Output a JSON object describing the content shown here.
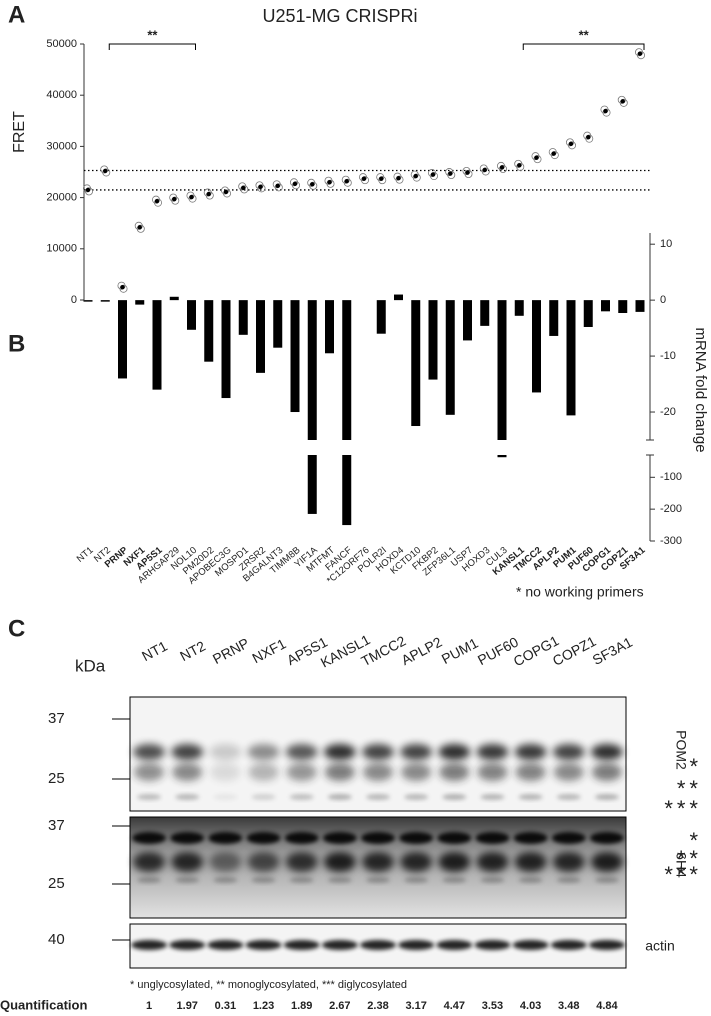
{
  "panel_labels": [
    "A",
    "B",
    "C"
  ],
  "chart_data": [
    {
      "type": "dot",
      "title": "U251-MG CRISPRi",
      "ylabel": "FRET",
      "categories": [
        "NT1",
        "NT2",
        "PRNP",
        "NXF1",
        "AP5S1",
        "ARHGAP29",
        "NOL10",
        "PM20D2",
        "APOBEC3G",
        "MOSPD1",
        "ZRSR2",
        "B4GALNT3",
        "TIMM8B",
        "YIF1A",
        "MTFMT",
        "FANCF",
        "*C12ORF76",
        "POLR2I",
        "HOXD4",
        "KCTD10",
        "FKBP2",
        "ZFP36L1",
        "USP7",
        "HOXD3",
        "CUL3",
        "KANSL1",
        "TMCC2",
        "APLP2",
        "PUM1",
        "PUF60",
        "COPG1",
        "COPZ1",
        "SF3A1"
      ],
      "bold": [
        false,
        false,
        true,
        true,
        true,
        false,
        false,
        false,
        false,
        false,
        false,
        false,
        false,
        false,
        false,
        false,
        false,
        false,
        false,
        false,
        false,
        false,
        false,
        false,
        false,
        true,
        true,
        true,
        true,
        true,
        true,
        true,
        true
      ],
      "values": [
        21500,
        25200,
        2500,
        14200,
        19300,
        19700,
        20100,
        20700,
        21100,
        21900,
        22100,
        22300,
        22700,
        22600,
        23000,
        23200,
        23700,
        23700,
        23800,
        24200,
        24500,
        24700,
        24900,
        25400,
        25900,
        26300,
        27800,
        28600,
        30500,
        31800,
        36900,
        38800,
        48100
      ],
      "color": "#000000",
      "ylim": [
        0,
        50000
      ],
      "yticks": [
        0,
        10000,
        20000,
        30000,
        40000,
        50000
      ],
      "reference_lines": [
        21500,
        25300
      ],
      "annotations": [
        {
          "text": "**",
          "from": "NT2",
          "to": "NOL10"
        },
        {
          "text": "**",
          "from": "KANSL1",
          "to": "SF3A1"
        }
      ]
    },
    {
      "type": "bar",
      "ylabel": "mRNA fold change",
      "axis": "y2",
      "values": [
        0,
        0,
        -14,
        -0.8,
        -16,
        0.6,
        -5.3,
        -11,
        -17.5,
        -6.2,
        -13,
        -8.5,
        -20,
        -215,
        -9.5,
        -250,
        null,
        -6,
        1,
        -22.5,
        -14.2,
        -20.5,
        -7.2,
        -4.6,
        -37,
        -2.8,
        -16.5,
        -6.4,
        -20.6,
        -4.8,
        -2,
        -2.3,
        -2.1
      ],
      "color": "#000000",
      "ylim": [
        -25,
        12
      ],
      "yticks": [
        -20,
        -10,
        0,
        10
      ],
      "ylim_lower": [
        -300,
        -30
      ],
      "yticks_lower": [
        -300,
        -200,
        -100
      ],
      "note": "*  no working primers"
    }
  ],
  "blot": {
    "lanes": [
      "NT1",
      "NT2",
      "PRNP",
      "NXF1",
      "AP5S1",
      "KANSL1",
      "TMCC2",
      "APLP2",
      "PUM1",
      "PUF60",
      "COPG1",
      "COPZ1",
      "SF3A1"
    ],
    "unit": "kDa",
    "panels": [
      {
        "label": "POM2",
        "markers": [
          37,
          25
        ],
        "marks": [
          "*",
          "**",
          "***"
        ]
      },
      {
        "label": "6H4",
        "markers": [
          37,
          25
        ],
        "marks": [
          "*",
          "**",
          "***"
        ]
      },
      {
        "label": "actin",
        "markers": [
          40
        ]
      }
    ],
    "footnote": "* unglycosylated, ** monoglycosylated, *** diglycosylated",
    "quantification": {
      "label": "Quantification",
      "values": [
        "1",
        "1.97",
        "0.31",
        "1.23",
        "1.89",
        "2.67",
        "2.38",
        "3.17",
        "4.47",
        "3.53",
        "4.03",
        "3.48",
        "4.84"
      ]
    }
  }
}
